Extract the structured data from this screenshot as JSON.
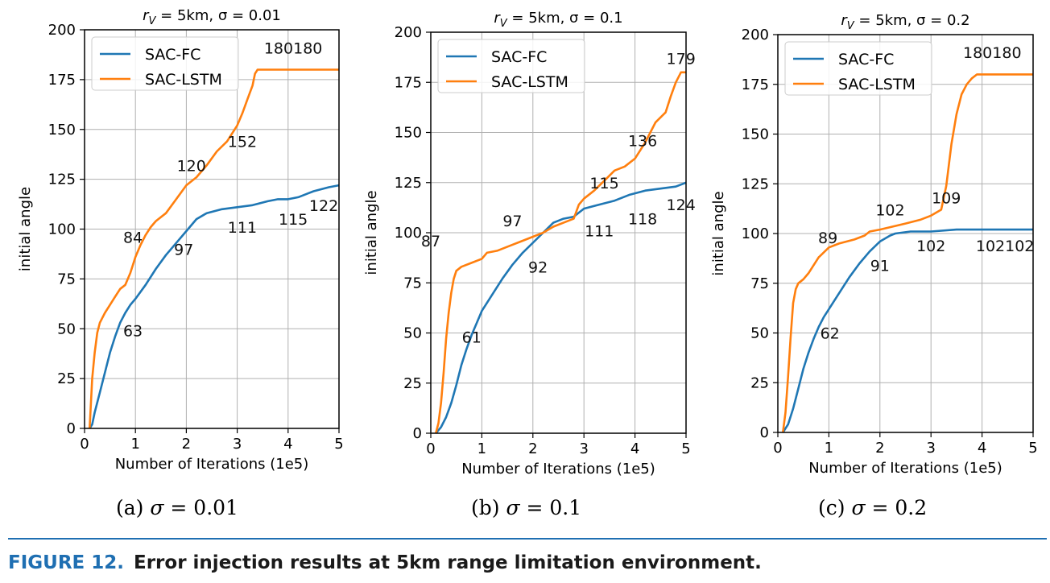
{
  "colors": {
    "SAC-FC": "#1f77b4",
    "SAC-LSTM": "#ff7f0e"
  },
  "figure_caption": {
    "label": "FIGURE 12.",
    "text": "Error injection results at 5km range limitation environment."
  },
  "subcaptions": [
    {
      "prefix": "(a)",
      "sym": "σ",
      "rest": "= 0.01"
    },
    {
      "prefix": "(b)",
      "sym": "σ",
      "rest": "= 0.1"
    },
    {
      "prefix": "(c)",
      "sym": "σ",
      "rest": "= 0.2"
    }
  ],
  "chart_data": [
    {
      "type": "line",
      "title": "r_V = 5km, σ = 0.01",
      "xlabel": "Number of Iterations (1e5)",
      "ylabel": "initial angle",
      "xlim": [
        0,
        5
      ],
      "ylim": [
        0,
        200
      ],
      "xticks": [
        0,
        1,
        2,
        3,
        4,
        5
      ],
      "yticks": [
        0,
        25,
        50,
        75,
        100,
        125,
        150,
        175,
        200
      ],
      "grid": true,
      "legend": "top-left",
      "series": [
        {
          "name": "SAC-FC",
          "x": [
            0.1,
            0.15,
            0.2,
            0.3,
            0.4,
            0.5,
            0.6,
            0.7,
            0.8,
            0.9,
            1.0,
            1.2,
            1.4,
            1.6,
            1.8,
            2.0,
            2.2,
            2.4,
            2.7,
            3.0,
            3.3,
            3.6,
            3.8,
            4.0,
            4.2,
            4.5,
            4.8,
            5.0
          ],
          "y": [
            0,
            2,
            8,
            18,
            28,
            38,
            46,
            53,
            58,
            62,
            65,
            72,
            80,
            87,
            93,
            99,
            105,
            108,
            110,
            111,
            112,
            114,
            115,
            115,
            116,
            119,
            121,
            122
          ]
        },
        {
          "name": "SAC-LSTM",
          "x": [
            0.1,
            0.15,
            0.2,
            0.25,
            0.3,
            0.4,
            0.5,
            0.6,
            0.7,
            0.8,
            0.9,
            1.0,
            1.1,
            1.2,
            1.3,
            1.4,
            1.6,
            1.8,
            2.0,
            2.2,
            2.4,
            2.6,
            2.8,
            3.0,
            3.1,
            3.2,
            3.3,
            3.35,
            3.4,
            3.6,
            4.0,
            4.5,
            5.0
          ],
          "y": [
            0,
            25,
            38,
            48,
            53,
            58,
            62,
            66,
            70,
            72,
            78,
            86,
            92,
            97,
            101,
            104,
            108,
            115,
            122,
            126,
            132,
            139,
            144,
            152,
            158,
            165,
            172,
            178,
            180,
            180,
            180,
            180,
            180
          ]
        }
      ],
      "annotations": [
        {
          "text": "84",
          "x": 0.95,
          "y": 96
        },
        {
          "text": "120",
          "x": 2.1,
          "y": 132
        },
        {
          "text": "152",
          "x": 3.1,
          "y": 144
        },
        {
          "text": "180180",
          "x": 4.1,
          "y": 191
        },
        {
          "text": "63",
          "x": 0.95,
          "y": 49
        },
        {
          "text": "97",
          "x": 1.95,
          "y": 90
        },
        {
          "text": "111",
          "x": 3.1,
          "y": 101
        },
        {
          "text": "115",
          "x": 4.1,
          "y": 105
        },
        {
          "text": "122",
          "x": 4.7,
          "y": 112
        }
      ]
    },
    {
      "type": "line",
      "title": "r_V = 5km, σ = 0.1",
      "xlabel": "Number of Iterations (1e5)",
      "ylabel": "initial angle",
      "xlim": [
        0,
        5
      ],
      "ylim": [
        0,
        200
      ],
      "xticks": [
        0,
        1,
        2,
        3,
        4,
        5
      ],
      "yticks": [
        0,
        25,
        50,
        75,
        100,
        125,
        150,
        175,
        200
      ],
      "grid": true,
      "legend": "top-left",
      "series": [
        {
          "name": "SAC-FC",
          "x": [
            0.1,
            0.2,
            0.3,
            0.4,
            0.5,
            0.6,
            0.7,
            0.8,
            0.9,
            1.0,
            1.2,
            1.4,
            1.6,
            1.8,
            2.0,
            2.2,
            2.4,
            2.6,
            2.8,
            3.0,
            3.3,
            3.6,
            3.9,
            4.2,
            4.5,
            4.8,
            5.0
          ],
          "y": [
            0,
            3,
            8,
            15,
            24,
            34,
            42,
            49,
            55,
            61,
            69,
            77,
            84,
            90,
            95,
            100,
            105,
            107,
            108,
            112,
            114,
            116,
            119,
            121,
            122,
            123,
            125
          ]
        },
        {
          "name": "SAC-LSTM",
          "x": [
            0.1,
            0.15,
            0.2,
            0.25,
            0.3,
            0.35,
            0.4,
            0.45,
            0.5,
            0.6,
            0.8,
            1.0,
            1.1,
            1.3,
            1.5,
            1.8,
            2.0,
            2.2,
            2.4,
            2.6,
            2.8,
            2.9,
            3.0,
            3.2,
            3.4,
            3.6,
            3.8,
            4.0,
            4.2,
            4.4,
            4.6,
            4.7,
            4.8,
            4.9,
            5.0
          ],
          "y": [
            0,
            5,
            15,
            30,
            47,
            60,
            70,
            77,
            81,
            83,
            85,
            87,
            90,
            91,
            93,
            96,
            98,
            100,
            103,
            105,
            107,
            114,
            117,
            121,
            126,
            131,
            133,
            137,
            145,
            155,
            160,
            168,
            175,
            180,
            180
          ]
        }
      ],
      "annotations": [
        {
          "text": "87",
          "x": 0.0,
          "y": 96
        },
        {
          "text": "97",
          "x": 1.6,
          "y": 106
        },
        {
          "text": "115",
          "x": 3.4,
          "y": 125
        },
        {
          "text": "136",
          "x": 4.15,
          "y": 146
        },
        {
          "text": "179",
          "x": 4.9,
          "y": 187
        },
        {
          "text": "61",
          "x": 0.8,
          "y": 48
        },
        {
          "text": "92",
          "x": 2.1,
          "y": 83
        },
        {
          "text": "111",
          "x": 3.3,
          "y": 101
        },
        {
          "text": "118",
          "x": 4.15,
          "y": 107
        },
        {
          "text": "124",
          "x": 4.9,
          "y": 114
        }
      ]
    },
    {
      "type": "line",
      "title": "r_V = 5km, σ = 0.2",
      "xlabel": "Number of Iterations (1e5)",
      "ylabel": "initial angle",
      "xlim": [
        0,
        5
      ],
      "ylim": [
        0,
        200
      ],
      "xticks": [
        0,
        1,
        2,
        3,
        4,
        5
      ],
      "yticks": [
        0,
        25,
        50,
        75,
        100,
        125,
        150,
        175,
        200
      ],
      "grid": true,
      "legend": "top-left",
      "series": [
        {
          "name": "SAC-FC",
          "x": [
            0.1,
            0.2,
            0.3,
            0.4,
            0.5,
            0.6,
            0.7,
            0.8,
            0.9,
            1.0,
            1.2,
            1.4,
            1.6,
            1.8,
            2.0,
            2.2,
            2.3,
            2.6,
            3.0,
            3.5,
            3.9,
            4.0,
            5.0
          ],
          "y": [
            0,
            4,
            12,
            22,
            32,
            40,
            47,
            53,
            58,
            62,
            70,
            78,
            85,
            91,
            96,
            99,
            100,
            101,
            101,
            102,
            102,
            102,
            102
          ]
        },
        {
          "name": "SAC-LSTM",
          "x": [
            0.1,
            0.15,
            0.2,
            0.25,
            0.3,
            0.35,
            0.4,
            0.5,
            0.6,
            0.8,
            1.0,
            1.2,
            1.5,
            1.7,
            1.8,
            2.0,
            2.5,
            2.8,
            3.0,
            3.2,
            3.3,
            3.4,
            3.5,
            3.6,
            3.7,
            3.8,
            3.9,
            4.0,
            5.0
          ],
          "y": [
            0,
            10,
            28,
            48,
            65,
            72,
            75,
            77,
            80,
            88,
            93,
            95,
            97,
            99,
            101,
            102,
            105,
            107,
            109,
            112,
            124,
            145,
            160,
            170,
            175,
            178,
            180,
            180,
            180
          ]
        }
      ],
      "annotations": [
        {
          "text": "89",
          "x": 0.98,
          "y": 98
        },
        {
          "text": "102",
          "x": 2.2,
          "y": 112
        },
        {
          "text": "109",
          "x": 3.3,
          "y": 118
        },
        {
          "text": "180180",
          "x": 4.2,
          "y": 191
        },
        {
          "text": "62",
          "x": 1.02,
          "y": 50
        },
        {
          "text": "91",
          "x": 2.0,
          "y": 84
        },
        {
          "text": "102",
          "x": 3.0,
          "y": 94
        },
        {
          "text": "102102",
          "x": 4.45,
          "y": 94
        }
      ]
    }
  ]
}
